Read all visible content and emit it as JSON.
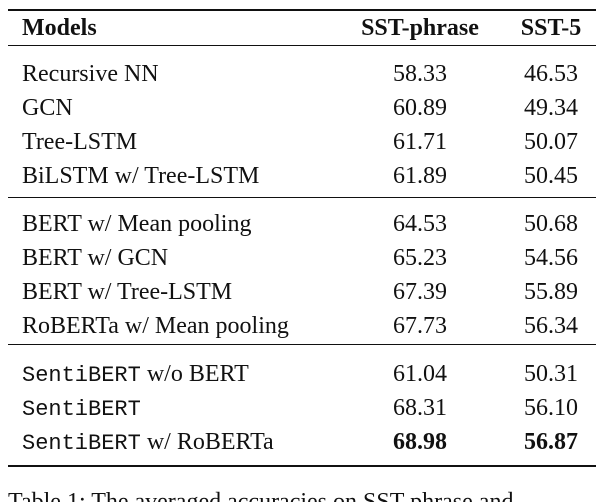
{
  "table": {
    "headers": [
      "Models",
      "SST-phrase",
      "SST-5"
    ],
    "groups": [
      {
        "rows": [
          {
            "model": "Recursive NN",
            "sst_phrase": "58.33",
            "sst5": "46.53"
          },
          {
            "model": "GCN",
            "sst_phrase": "60.89",
            "sst5": "49.34"
          },
          {
            "model": "Tree-LSTM",
            "sst_phrase": "61.71",
            "sst5": "50.07"
          },
          {
            "model": "BiLSTM w/ Tree-LSTM",
            "sst_phrase": "61.89",
            "sst5": "50.45"
          }
        ]
      },
      {
        "rows": [
          {
            "model": "BERT w/ Mean pooling",
            "sst_phrase": "64.53",
            "sst5": "50.68"
          },
          {
            "model": "BERT w/ GCN",
            "sst_phrase": "65.23",
            "sst5": "54.56"
          },
          {
            "model": "BERT w/ Tree-LSTM",
            "sst_phrase": "67.39",
            "sst5": "55.89"
          },
          {
            "model": "RoBERTa w/ Mean pooling",
            "sst_phrase": "67.73",
            "sst5": "56.34"
          }
        ]
      },
      {
        "rows": [
          {
            "model_code": "SentiBERT",
            "model": "w/o BERT",
            "sst_phrase": "61.04",
            "sst5": "50.31"
          },
          {
            "model_code": "SentiBERT",
            "sst_phrase": "68.31",
            "sst5": "56.10"
          },
          {
            "model_code": "SentiBERT",
            "model": "w/ RoBERTa",
            "sst_phrase": "68.98",
            "sst5": "56.87",
            "bold": true
          }
        ]
      }
    ]
  },
  "caption": "Table 1: The averaged accuracies on SST-phrase and"
}
